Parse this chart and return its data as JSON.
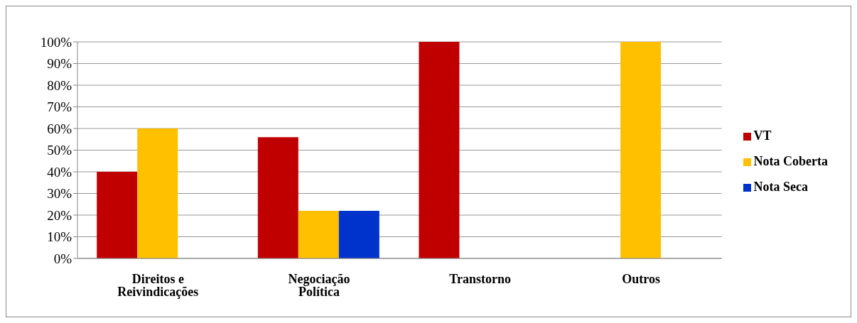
{
  "chart_data": {
    "type": "bar",
    "categories": [
      "Direitos e Reivindicações",
      "Negociação Política",
      "Transtorno",
      "Outros"
    ],
    "series": [
      {
        "name": "VT",
        "color": "#c00000",
        "values": [
          40,
          56,
          100,
          0
        ]
      },
      {
        "name": "Nota Coberta",
        "color": "#ffc000",
        "values": [
          60,
          22,
          0,
          100
        ]
      },
      {
        "name": "Nota Seca",
        "color": "#0033cc",
        "values": [
          0,
          22,
          0,
          0
        ]
      }
    ],
    "ylim": [
      0,
      100
    ],
    "yticks": [
      {
        "value": 0,
        "label": "0%"
      },
      {
        "value": 10,
        "label": "10%"
      },
      {
        "value": 20,
        "label": "20%"
      },
      {
        "value": 30,
        "label": "30%"
      },
      {
        "value": 40,
        "label": "40%"
      },
      {
        "value": 50,
        "label": "50%"
      },
      {
        "value": 60,
        "label": "60%"
      },
      {
        "value": 70,
        "label": "70%"
      },
      {
        "value": 80,
        "label": "80%"
      },
      {
        "value": 90,
        "label": "90%"
      },
      {
        "value": 100,
        "label": "100%"
      }
    ],
    "grid": "y",
    "legend": "right"
  }
}
